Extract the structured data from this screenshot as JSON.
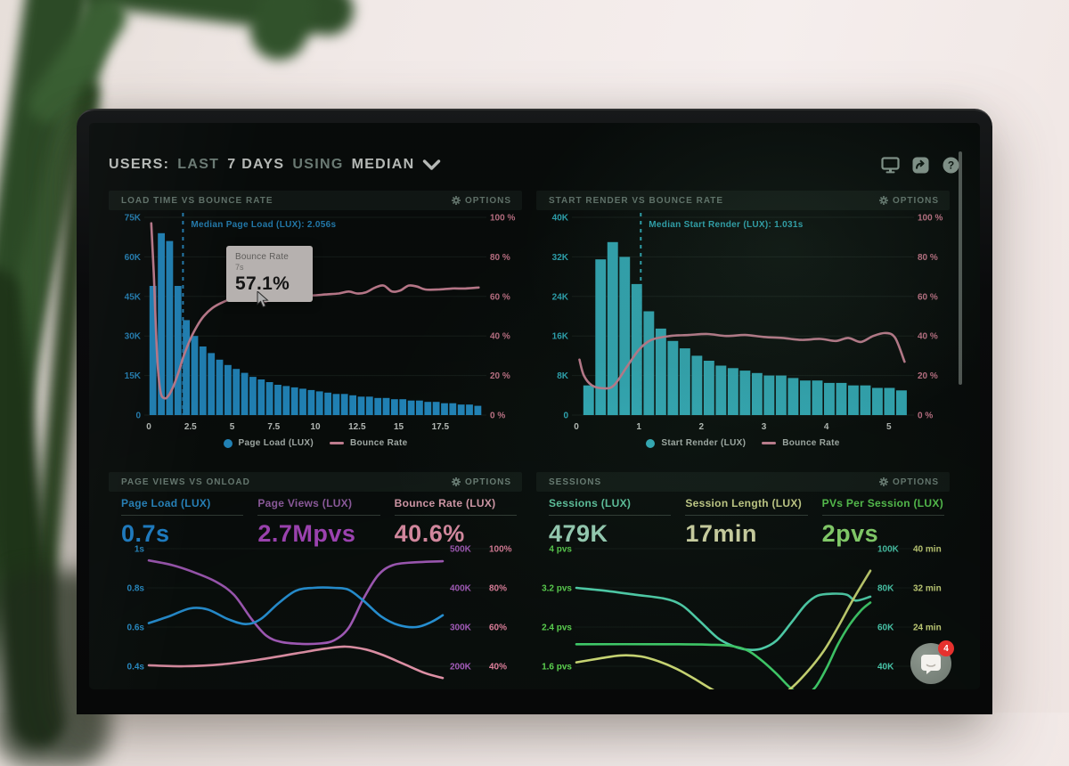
{
  "header": {
    "segments": [
      {
        "text": "USERS:",
        "muted": false
      },
      {
        "text": "LAST",
        "muted": true
      },
      {
        "text": "7 DAYS",
        "muted": false
      },
      {
        "text": "USING",
        "muted": true
      },
      {
        "text": "MEDIAN",
        "muted": false
      }
    ],
    "icons": [
      "display-icon",
      "share-icon",
      "help-icon"
    ]
  },
  "ui": {
    "options_label": "OPTIONS"
  },
  "chat": {
    "badge_count": "4",
    "icon": "chat-bubble-icon"
  },
  "colors": {
    "blue": "#2b9fe8",
    "cyan": "#3fd3e3",
    "pink": "#f09cb3",
    "purple": "#b163c9",
    "teal": "#57e3bb",
    "green": "#45db72",
    "yellow": "#d8e67c",
    "panel_title": "#7e948a",
    "screen_bg": "#0a0f0d"
  },
  "chart_data": [
    {
      "id": "load-time",
      "title": "LOAD TIME VS BOUNCE RATE",
      "type": "bar+line",
      "x_range": [
        0,
        20
      ],
      "x_ticks": [
        {
          "v": 0,
          "l": "0"
        },
        {
          "v": 2.5,
          "l": "2.5"
        },
        {
          "v": 5,
          "l": "5"
        },
        {
          "v": 7.5,
          "l": "7.5"
        },
        {
          "v": 10,
          "l": "10"
        },
        {
          "v": 12.5,
          "l": "12.5"
        },
        {
          "v": 15,
          "l": "15"
        },
        {
          "v": 17.5,
          "l": "17.5"
        }
      ],
      "y_left": {
        "ticks": [
          "75K",
          "60K",
          "45K",
          "30K",
          "15K",
          "0"
        ],
        "max": 75,
        "color": "#2d9fe0"
      },
      "y_right": {
        "ticks": [
          "100 %",
          "80 %",
          "60 %",
          "40 %",
          "20 %",
          "0 %"
        ],
        "max": 100,
        "color": "#ef8fa8"
      },
      "bar_series": {
        "name": "Page Load (LUX)",
        "color": "#2aa6e8",
        "x_start": 0,
        "bucket": 0.5,
        "values_k": [
          49,
          69,
          66,
          49,
          36,
          30,
          26,
          23.5,
          21,
          19,
          17.5,
          16,
          14.5,
          13.5,
          12.5,
          11.5,
          11,
          10.5,
          10,
          9.5,
          9,
          8.5,
          8,
          8,
          7.5,
          7,
          7,
          6.5,
          6.5,
          6,
          6,
          5.5,
          5.5,
          5,
          5,
          4.5,
          4.5,
          4,
          4,
          3.5
        ]
      },
      "line_series": {
        "name": "Bounce Rate",
        "color": "#f09cb3",
        "points": [
          [
            0.15,
            97
          ],
          [
            0.3,
            72
          ],
          [
            0.5,
            30
          ],
          [
            0.7,
            12
          ],
          [
            0.95,
            8.5
          ],
          [
            1.2,
            10
          ],
          [
            1.5,
            15
          ],
          [
            1.8,
            22
          ],
          [
            2.1,
            30
          ],
          [
            2.5,
            38.5
          ],
          [
            2.9,
            45
          ],
          [
            3.3,
            50
          ],
          [
            3.8,
            54
          ],
          [
            4.3,
            56.5
          ],
          [
            5,
            59
          ],
          [
            5.7,
            60.5
          ],
          [
            6.4,
            61
          ],
          [
            7,
            57.5
          ],
          [
            7.5,
            60
          ],
          [
            8.2,
            60.5
          ],
          [
            9,
            61
          ],
          [
            9.8,
            60.5
          ],
          [
            10.6,
            61
          ],
          [
            11.4,
            61.5
          ],
          [
            12,
            62.5
          ],
          [
            12.5,
            61.5
          ],
          [
            13,
            62
          ],
          [
            13.6,
            64.5
          ],
          [
            14.1,
            65.5
          ],
          [
            14.6,
            62.5
          ],
          [
            15.1,
            63
          ],
          [
            15.6,
            65.5
          ],
          [
            16.1,
            65
          ],
          [
            16.6,
            63.5
          ],
          [
            17.4,
            63.5
          ],
          [
            18.2,
            64
          ],
          [
            19,
            64
          ],
          [
            19.8,
            64.5
          ]
        ]
      },
      "median": {
        "label": "Median Page Load (LUX): 2.056s",
        "x": 2.056,
        "color": "#2d9fe0"
      },
      "tooltip": {
        "series": "Bounce Rate",
        "x_label": "7s",
        "value": "57.1%"
      }
    },
    {
      "id": "start-render",
      "title": "START RENDER VS BOUNCE RATE",
      "type": "bar+line",
      "x_range": [
        0,
        5.33
      ],
      "x_ticks": [
        {
          "v": 0,
          "l": "0"
        },
        {
          "v": 1,
          "l": "1"
        },
        {
          "v": 2,
          "l": "2"
        },
        {
          "v": 3,
          "l": "3"
        },
        {
          "v": 4,
          "l": "4"
        },
        {
          "v": 5,
          "l": "5"
        }
      ],
      "y_left": {
        "ticks": [
          "40K",
          "32K",
          "24K",
          "16K",
          "8K",
          "0"
        ],
        "max": 40,
        "color": "#3ad0e0"
      },
      "y_right": {
        "ticks": [
          "100 %",
          "80 %",
          "60 %",
          "40 %",
          "20 %",
          "0 %"
        ],
        "max": 100,
        "color": "#ef8fa8"
      },
      "bar_series": {
        "name": "Start Render (LUX)",
        "color": "#3fd3e3",
        "x_start": 0.1,
        "bucket": 0.1925,
        "values_k": [
          6,
          31.5,
          35,
          32,
          26.5,
          21,
          17.5,
          15,
          13.5,
          12,
          11,
          10,
          9.5,
          9,
          8.5,
          8,
          8,
          7.5,
          7,
          7,
          6.5,
          6.5,
          6,
          6,
          5.5,
          5.5,
          5
        ]
      },
      "line_series": {
        "name": "Bounce Rate",
        "color": "#f09cb3",
        "points": [
          [
            0.05,
            28
          ],
          [
            0.12,
            20
          ],
          [
            0.25,
            15
          ],
          [
            0.45,
            13.5
          ],
          [
            0.6,
            15
          ],
          [
            0.8,
            24
          ],
          [
            1.0,
            33
          ],
          [
            1.2,
            38
          ],
          [
            1.5,
            40
          ],
          [
            1.8,
            40.5
          ],
          [
            2.1,
            41
          ],
          [
            2.4,
            40
          ],
          [
            2.7,
            40.5
          ],
          [
            3.0,
            39.5
          ],
          [
            3.3,
            39
          ],
          [
            3.6,
            38
          ],
          [
            3.9,
            38.5
          ],
          [
            4.15,
            37.5
          ],
          [
            4.35,
            39
          ],
          [
            4.55,
            37
          ],
          [
            4.75,
            40
          ],
          [
            4.95,
            41.5
          ],
          [
            5.1,
            39
          ],
          [
            5.25,
            27
          ]
        ]
      },
      "median": {
        "label": "Median Start Render (LUX): 1.031s",
        "x": 1.031,
        "color": "#3ad0e0"
      }
    },
    {
      "id": "page-views-vs-onload",
      "title": "PAGE VIEWS VS ONLOAD",
      "type": "line",
      "metrics": [
        {
          "label": "Page Load (LUX)",
          "value": "0.7s",
          "label_color": "#2f9fe3",
          "value_color": "#2496ea"
        },
        {
          "label": "Page Views (LUX)",
          "value": "2.7Mpvs",
          "label_color": "#a76cba",
          "value_color": "#b94fd1"
        },
        {
          "label": "Bounce Rate (LUX)",
          "value": "40.6%",
          "label_color": "#f6b3c5",
          "value_color": "#f79fb9"
        }
      ],
      "axes": {
        "seconds": {
          "max": 1,
          "step": 0.2
        },
        "thousands": {
          "max": 500,
          "step": 100
        },
        "percent": {
          "max": 100,
          "step": 20
        }
      },
      "y_left": {
        "ticks": [
          "1s",
          "0.8s",
          "0.6s",
          "0.4s"
        ],
        "color": "#2d9fe0"
      },
      "y_right1": {
        "ticks": [
          "500K",
          "400K",
          "300K",
          "200K"
        ],
        "color": "#b163c9"
      },
      "y_right2": {
        "ticks": [
          "100%",
          "80%",
          "60%",
          "40%"
        ],
        "color": "#f08aa8"
      },
      "series": [
        {
          "name": "Page Views (LUX)",
          "axis": "thousands",
          "color": "#b163c9",
          "points": [
            [
              0,
              470
            ],
            [
              0.08,
              458
            ],
            [
              0.16,
              438
            ],
            [
              0.23,
              415
            ],
            [
              0.29,
              382
            ],
            [
              0.35,
              320
            ],
            [
              0.4,
              278
            ],
            [
              0.45,
              262
            ],
            [
              0.52,
              257
            ],
            [
              0.58,
              258
            ],
            [
              0.63,
              266
            ],
            [
              0.68,
              298
            ],
            [
              0.73,
              372
            ],
            [
              0.78,
              432
            ],
            [
              0.83,
              458
            ],
            [
              0.9,
              465
            ],
            [
              1,
              468
            ]
          ]
        },
        {
          "name": "Page Load (LUX)",
          "axis": "seconds",
          "color": "#2b9fe8",
          "points": [
            [
              0,
              0.62
            ],
            [
              0.07,
              0.655
            ],
            [
              0.14,
              0.695
            ],
            [
              0.2,
              0.69
            ],
            [
              0.27,
              0.64
            ],
            [
              0.33,
              0.615
            ],
            [
              0.38,
              0.64
            ],
            [
              0.44,
              0.72
            ],
            [
              0.5,
              0.785
            ],
            [
              0.56,
              0.8
            ],
            [
              0.63,
              0.8
            ],
            [
              0.68,
              0.79
            ],
            [
              0.73,
              0.735
            ],
            [
              0.79,
              0.655
            ],
            [
              0.85,
              0.61
            ],
            [
              0.91,
              0.6
            ],
            [
              0.96,
              0.625
            ],
            [
              1,
              0.66
            ]
          ]
        },
        {
          "name": "Bounce Rate (LUX)",
          "axis": "percent",
          "color": "#f09cb3",
          "points": [
            [
              0,
              40.5
            ],
            [
              0.12,
              40
            ],
            [
              0.25,
              41
            ],
            [
              0.38,
              43.5
            ],
            [
              0.5,
              46.5
            ],
            [
              0.6,
              49
            ],
            [
              0.67,
              50
            ],
            [
              0.74,
              48.5
            ],
            [
              0.8,
              45.5
            ],
            [
              0.87,
              41
            ],
            [
              0.94,
              36.5
            ],
            [
              1,
              34
            ]
          ]
        }
      ]
    },
    {
      "id": "sessions",
      "title": "SESSIONS",
      "type": "line",
      "metrics": [
        {
          "label": "Sessions (LUX)",
          "value": "479K",
          "label_color": "#6fe3b8",
          "value_color": "#aeeccf"
        },
        {
          "label": "Session Length (LUX)",
          "value": "17min",
          "label_color": "#e7f0a0",
          "value_color": "#eff3bc"
        },
        {
          "label": "PVs Per Session (LUX)",
          "value": "2pvs",
          "label_color": "#66e55c",
          "value_color": "#9cf37d"
        }
      ],
      "axes": {
        "pvs": {
          "max": 4,
          "step": 0.8
        },
        "sessions_k": {
          "max": 100,
          "step": 20
        },
        "minutes": {
          "max": 40,
          "step": 8
        }
      },
      "y_left": {
        "ticks": [
          "4 pvs",
          "3.2 pvs",
          "2.4 pvs",
          "1.6 pvs"
        ],
        "color": "#63e356"
      },
      "y_right1": {
        "ticks": [
          "100K",
          "80K",
          "60K",
          "40K"
        ],
        "color": "#52e0c0"
      },
      "y_right2": {
        "ticks": [
          "40 min",
          "32 min",
          "24 min"
        ],
        "color": "#dcea87"
      },
      "series": [
        {
          "name": "Sessions (LUX)",
          "axis": "sessions_k",
          "color": "#57e3bb",
          "points": [
            [
              0,
              80
            ],
            [
              0.1,
              78.5
            ],
            [
              0.2,
              76.5
            ],
            [
              0.3,
              74.5
            ],
            [
              0.36,
              71
            ],
            [
              0.42,
              63
            ],
            [
              0.48,
              54.5
            ],
            [
              0.53,
              50.5
            ],
            [
              0.58,
              48.5
            ],
            [
              0.63,
              49
            ],
            [
              0.68,
              53
            ],
            [
              0.73,
              62
            ],
            [
              0.78,
              71.5
            ],
            [
              0.82,
              76
            ],
            [
              0.87,
              77
            ],
            [
              0.92,
              76.5
            ],
            [
              0.95,
              73.5
            ],
            [
              1,
              75.5
            ]
          ]
        },
        {
          "name": "PVs Per Session (LUX)",
          "axis": "pvs",
          "color": "#45db72",
          "points": [
            [
              0,
              2.05
            ],
            [
              0.3,
              2.05
            ],
            [
              0.45,
              2.04
            ],
            [
              0.52,
              2.02
            ],
            [
              0.58,
              1.93
            ],
            [
              0.63,
              1.72
            ],
            [
              0.68,
              1.45
            ],
            [
              0.73,
              1.15
            ],
            [
              0.77,
              1.02
            ],
            [
              0.81,
              1.15
            ],
            [
              0.85,
              1.55
            ],
            [
              0.89,
              2.05
            ],
            [
              0.93,
              2.45
            ],
            [
              0.97,
              2.75
            ],
            [
              1,
              2.9
            ]
          ]
        },
        {
          "name": "Session Length (LUX)",
          "axis": "minutes",
          "color": "#d8e67c",
          "points": [
            [
              0,
              16.8
            ],
            [
              0.08,
              17.6
            ],
            [
              0.15,
              18.2
            ],
            [
              0.22,
              18
            ],
            [
              0.28,
              17
            ],
            [
              0.34,
              15.5
            ],
            [
              0.4,
              13.5
            ],
            [
              0.47,
              11
            ],
            [
              0.54,
              9.3
            ],
            [
              0.6,
              8.6
            ],
            [
              0.66,
              9.2
            ],
            [
              0.72,
              11
            ],
            [
              0.78,
              14.5
            ],
            [
              0.84,
              19
            ],
            [
              0.89,
              24
            ],
            [
              0.94,
              29.5
            ],
            [
              1,
              35.5
            ]
          ]
        }
      ]
    }
  ]
}
